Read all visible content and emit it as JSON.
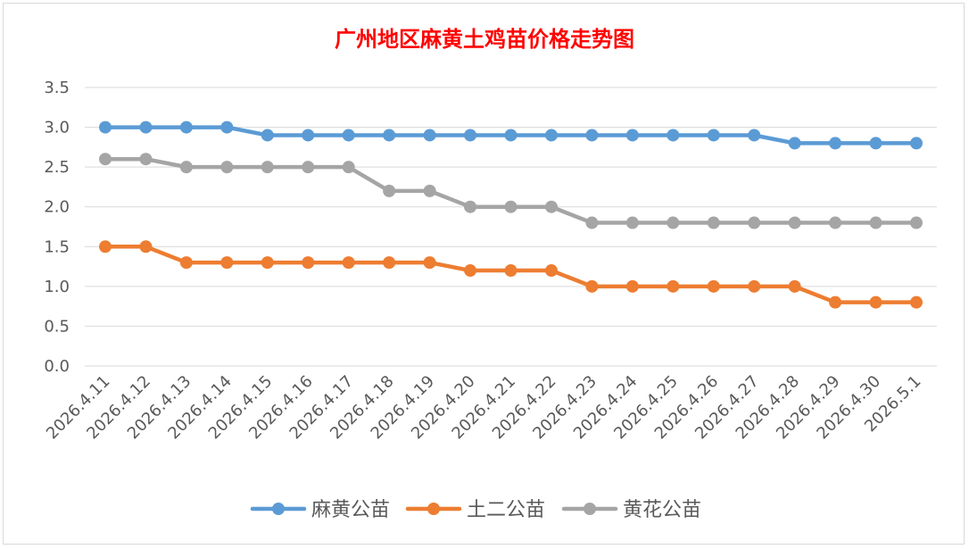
{
  "chart_data": {
    "type": "line",
    "title": "广州地区麻黄土鸡苗价格走势图",
    "xlabel": "",
    "ylabel": "",
    "categories": [
      "2026.4.11",
      "2026.4.12",
      "2026.4.13",
      "2026.4.14",
      "2026.4.15",
      "2026.4.16",
      "2026.4.17",
      "2026.4.18",
      "2026.4.19",
      "2026.4.20",
      "2026.4.21",
      "2026.4.22",
      "2026.4.23",
      "2026.4.24",
      "2026.4.25",
      "2026.4.26",
      "2026.4.27",
      "2026.4.28",
      "2026.4.29",
      "2026.4.30",
      "2026.5.1"
    ],
    "ylim": [
      0,
      3.5
    ],
    "yticks": [
      "0.0",
      "0.5",
      "1.0",
      "1.5",
      "2.0",
      "2.5",
      "3.0",
      "3.5"
    ],
    "grid": true,
    "legend_position": "bottom",
    "series": [
      {
        "name": "麻黄公苗",
        "color": "#5b9bd5",
        "values": [
          3.0,
          3.0,
          3.0,
          3.0,
          2.9,
          2.9,
          2.9,
          2.9,
          2.9,
          2.9,
          2.9,
          2.9,
          2.9,
          2.9,
          2.9,
          2.9,
          2.9,
          2.8,
          2.8,
          2.8,
          2.8
        ]
      },
      {
        "name": "土二公苗",
        "color": "#ed7d31",
        "values": [
          1.5,
          1.5,
          1.3,
          1.3,
          1.3,
          1.3,
          1.3,
          1.3,
          1.3,
          1.2,
          1.2,
          1.2,
          1.0,
          1.0,
          1.0,
          1.0,
          1.0,
          1.0,
          0.8,
          0.8,
          0.8
        ]
      },
      {
        "name": "黄花公苗",
        "color": "#a5a5a5",
        "values": [
          2.6,
          2.6,
          2.5,
          2.5,
          2.5,
          2.5,
          2.5,
          2.2,
          2.2,
          2.0,
          2.0,
          2.0,
          1.8,
          1.8,
          1.8,
          1.8,
          1.8,
          1.8,
          1.8,
          1.8,
          1.8
        ]
      }
    ],
    "title_color": "#ff0000"
  }
}
